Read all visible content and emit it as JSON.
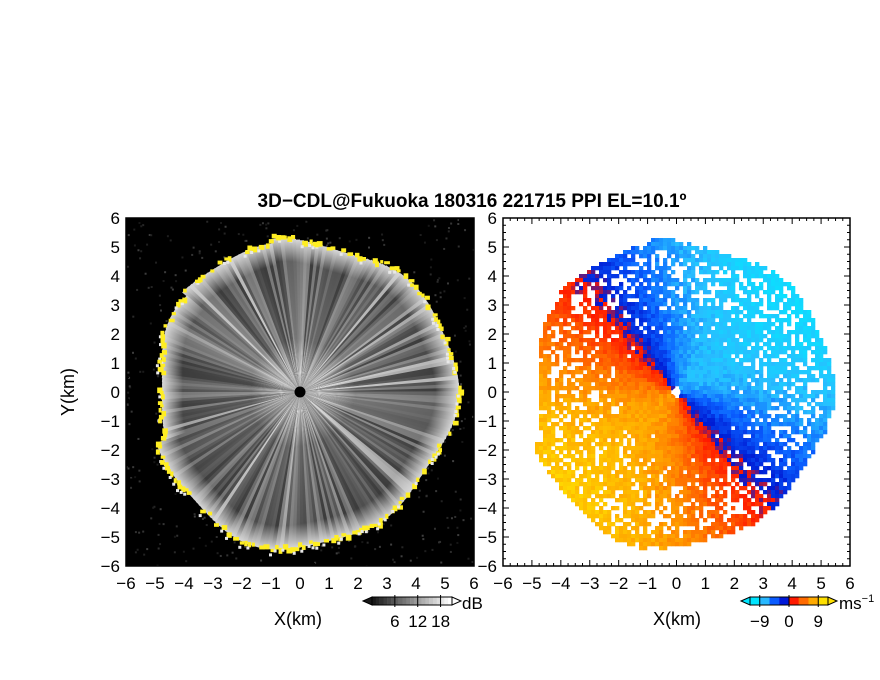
{
  "title": "3D−CDL@Fukuoka 180316 221715 PPI EL=10.1º",
  "colors": {
    "background": "#000000",
    "edge_highlight": "#ffee22",
    "velocity_scale": [
      "#00e5ff",
      "#28b8ff",
      "#0a5bff",
      "#0018d8",
      "#ff1a00",
      "#ff6a00",
      "#ffaa00",
      "#ffe000"
    ]
  },
  "chart_data": [
    {
      "type": "heatmap",
      "quantity": "reflectivity (SNR)",
      "xlabel": "X(km)",
      "ylabel": "Y(km)",
      "xlim": [
        -6,
        6
      ],
      "ylim": [
        -6,
        6
      ],
      "xticks": [
        "−6",
        "−5",
        "−4",
        "−3",
        "−2",
        "−1",
        "0",
        "1",
        "2",
        "3",
        "4",
        "5",
        "6"
      ],
      "yticks": [
        "6",
        "5",
        "4",
        "3",
        "2",
        "1",
        "0",
        "−1",
        "−2",
        "−3",
        "−4",
        "−5",
        "−6"
      ],
      "scan_radius_km": 5.3,
      "colorbar": {
        "unit": "dB",
        "ticks": [
          "6",
          "12",
          "18"
        ],
        "range": [
          0,
          21
        ]
      }
    },
    {
      "type": "heatmap",
      "quantity": "Doppler radial velocity",
      "xlabel": "X(km)",
      "ylabel": "",
      "xlim": [
        -6,
        6
      ],
      "ylim": [
        -6,
        6
      ],
      "xticks": [
        "−6",
        "−5",
        "−4",
        "−3",
        "−2",
        "−1",
        "0",
        "1",
        "2",
        "3",
        "4",
        "5",
        "6"
      ],
      "yticks": [
        "6",
        "5",
        "4",
        "3",
        "2",
        "1",
        "0",
        "−1",
        "−2",
        "−3",
        "−4",
        "−5",
        "−6"
      ],
      "scan_radius_km": 5.3,
      "colorbar": {
        "unit": "ms",
        "unit_exponent": "−1",
        "ticks": [
          "−9",
          "0",
          "9"
        ],
        "range": [
          -12,
          12
        ]
      }
    }
  ]
}
